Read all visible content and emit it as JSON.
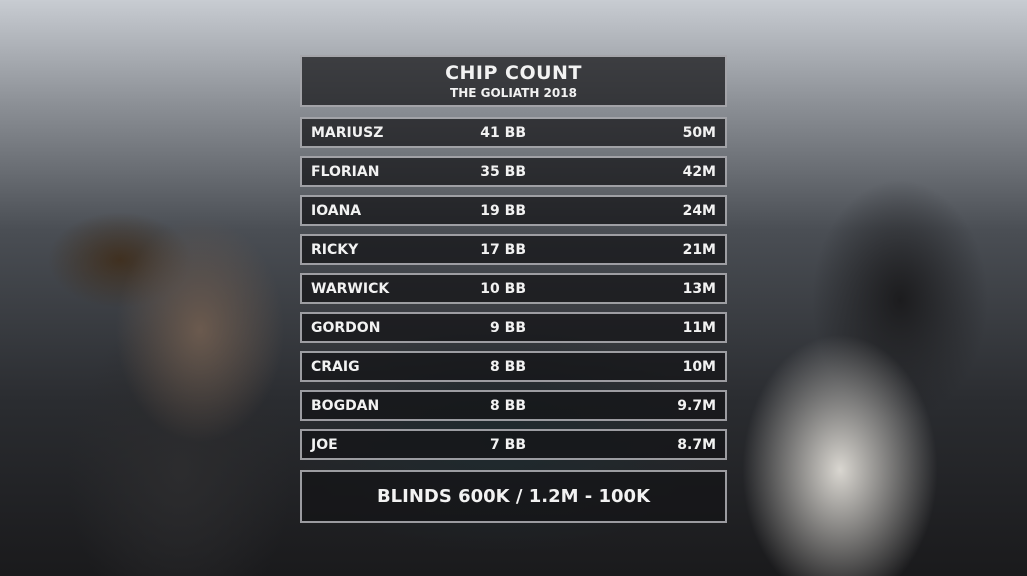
{
  "header": {
    "title": "CHIP COUNT",
    "subtitle": "THE GOLIATH 2018"
  },
  "players": [
    {
      "name": "MARIUSZ",
      "bb": "41 BB",
      "chips": "50M"
    },
    {
      "name": "FLORIAN",
      "bb": "35 BB",
      "chips": "42M"
    },
    {
      "name": "IOANA",
      "bb": "19 BB",
      "chips": "24M"
    },
    {
      "name": "RICKY",
      "bb": "17 BB",
      "chips": "21M"
    },
    {
      "name": "WARWICK",
      "bb": "10 BB",
      "chips": "13M"
    },
    {
      "name": "GORDON",
      "bb": "9 BB",
      "chips": "11M"
    },
    {
      "name": "CRAIG",
      "bb": "8 BB",
      "chips": "10M"
    },
    {
      "name": "BOGDAN",
      "bb": "8 BB",
      "chips": "9.7M"
    },
    {
      "name": "JOE",
      "bb": "7 BB",
      "chips": "8.7M"
    }
  ],
  "footer": {
    "blinds": "BLINDS 600K / 1.2M - 100K"
  }
}
